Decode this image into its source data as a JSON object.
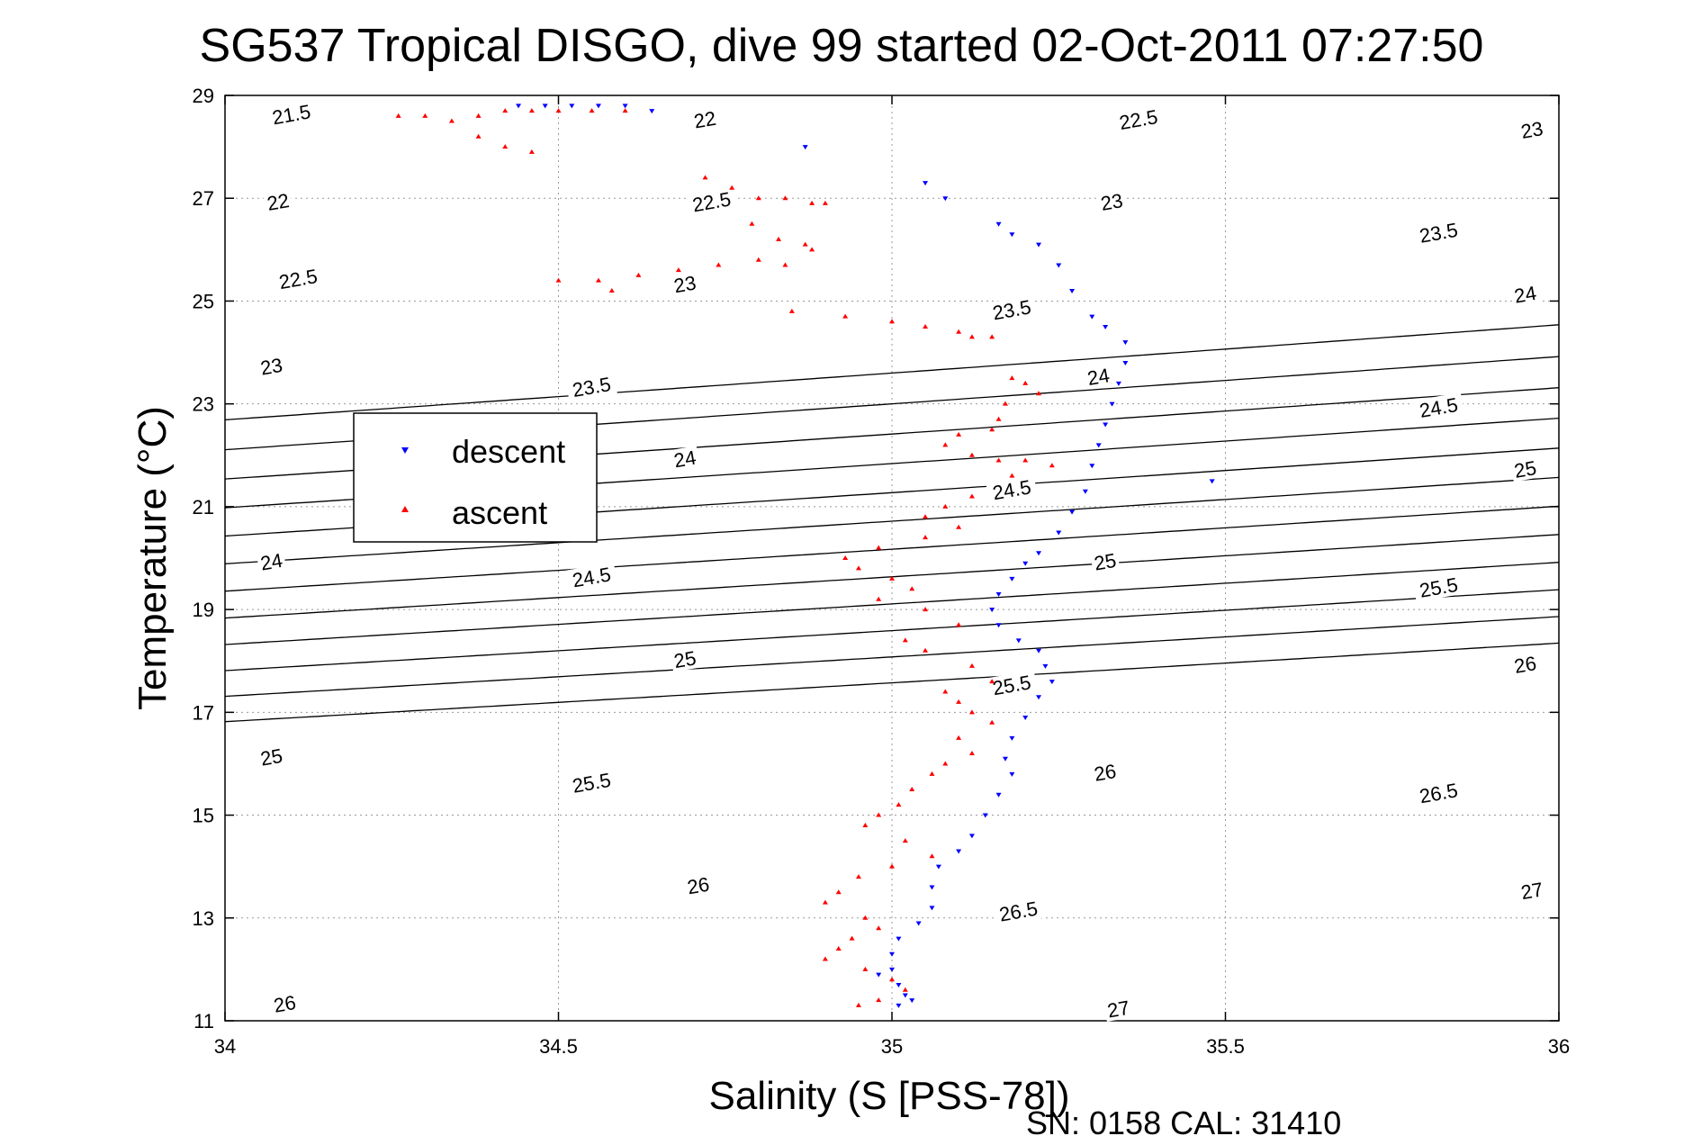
{
  "chart_data": {
    "type": "scatter",
    "title": "SG537 Tropical DISGO, dive 99 started 02-Oct-2011 07:27:50",
    "xlabel": "Salinity (S [PSS-78])",
    "ylabel": "Temperature (°C)",
    "xlim": [
      34,
      36
    ],
    "ylim": [
      11,
      29
    ],
    "x_ticks": [
      34,
      34.5,
      35,
      35.5,
      36
    ],
    "x_tick_labels": [
      "34",
      "34.5",
      "35",
      "35.5",
      "36"
    ],
    "y_ticks": [
      11,
      13,
      15,
      17,
      19,
      21,
      23,
      25,
      27,
      29
    ],
    "y_tick_labels": [
      "11",
      "13",
      "15",
      "17",
      "19",
      "21",
      "23",
      "25",
      "27",
      "29"
    ],
    "grid": true,
    "legend_position": "upper-left",
    "footnote": "SN: 0158  CAL: 31410",
    "colors": {
      "descent": "#0000ff",
      "ascent": "#ff0000",
      "contour": "#000000"
    },
    "density_contours": [
      {
        "level": 21.5,
        "label": "21.5",
        "labels_at": [
          {
            "s": 34.1,
            "t": 28.6
          }
        ]
      },
      {
        "level": 22,
        "label": "22",
        "labels_at": [
          {
            "s": 34.08,
            "t": 26.9
          },
          {
            "s": 34.72,
            "t": 28.5
          }
        ]
      },
      {
        "level": 22.5,
        "label": "22.5",
        "labels_at": [
          {
            "s": 34.11,
            "t": 25.4
          },
          {
            "s": 34.73,
            "t": 26.9
          },
          {
            "s": 35.37,
            "t": 28.5
          }
        ]
      },
      {
        "level": 23,
        "label": "23",
        "labels_at": [
          {
            "s": 34.07,
            "t": 23.7
          },
          {
            "s": 34.69,
            "t": 25.3
          },
          {
            "s": 35.33,
            "t": 26.9
          },
          {
            "s": 35.96,
            "t": 28.3
          }
        ]
      },
      {
        "level": 23.5,
        "label": "23.5",
        "labels_at": [
          {
            "s": 34.55,
            "t": 23.3
          },
          {
            "s": 35.18,
            "t": 24.8
          },
          {
            "s": 35.82,
            "t": 26.3
          }
        ]
      },
      {
        "level": 24,
        "label": "24",
        "labels_at": [
          {
            "s": 34.07,
            "t": 19.9
          },
          {
            "s": 34.69,
            "t": 21.9
          },
          {
            "s": 35.31,
            "t": 23.5
          },
          {
            "s": 35.95,
            "t": 25.1
          }
        ]
      },
      {
        "level": 24.5,
        "label": "24.5",
        "labels_at": [
          {
            "s": 34.55,
            "t": 19.6
          },
          {
            "s": 35.18,
            "t": 21.3
          },
          {
            "s": 35.82,
            "t": 22.9
          }
        ]
      },
      {
        "level": 25,
        "label": "25",
        "labels_at": [
          {
            "s": 34.07,
            "t": 16.1
          },
          {
            "s": 34.69,
            "t": 18.0
          },
          {
            "s": 35.32,
            "t": 19.9
          },
          {
            "s": 35.95,
            "t": 21.7
          }
        ]
      },
      {
        "level": 25.5,
        "label": "25.5",
        "labels_at": [
          {
            "s": 34.55,
            "t": 15.6
          },
          {
            "s": 35.18,
            "t": 17.5
          },
          {
            "s": 35.82,
            "t": 19.4
          }
        ]
      },
      {
        "level": 26,
        "label": "26",
        "labels_at": [
          {
            "s": 34.09,
            "t": 11.3
          },
          {
            "s": 34.71,
            "t": 13.6
          },
          {
            "s": 35.32,
            "t": 15.8
          },
          {
            "s": 35.95,
            "t": 17.9
          }
        ]
      },
      {
        "level": 26.5,
        "label": "26.5",
        "labels_at": [
          {
            "s": 35.19,
            "t": 13.1
          },
          {
            "s": 35.82,
            "t": 15.4
          }
        ]
      },
      {
        "level": 27,
        "label": "27",
        "labels_at": [
          {
            "s": 35.34,
            "t": 11.2
          },
          {
            "s": 35.96,
            "t": 13.5
          }
        ]
      }
    ],
    "series": [
      {
        "name": "descent",
        "marker": "triangle-down",
        "x": [
          34.44,
          34.48,
          34.52,
          34.56,
          34.6,
          34.64,
          34.87,
          35.05,
          35.08,
          35.16,
          35.18,
          35.22,
          35.25,
          35.27,
          35.3,
          35.32,
          35.35,
          35.35,
          35.34,
          35.33,
          35.32,
          35.31,
          35.3,
          35.29,
          35.27,
          35.25,
          35.22,
          35.2,
          35.18,
          35.16,
          35.15,
          35.16,
          35.19,
          35.22,
          35.23,
          35.24,
          35.22,
          35.2,
          35.18,
          35.17,
          35.18,
          35.16,
          35.14,
          35.12,
          35.1,
          35.07,
          35.06,
          35.06,
          35.04,
          35.01,
          35.0,
          35.0,
          34.98,
          35.01,
          35.02,
          35.03,
          35.01,
          35.48
        ],
        "y": [
          28.8,
          28.8,
          28.8,
          28.8,
          28.8,
          28.7,
          28.0,
          27.3,
          27.0,
          26.5,
          26.3,
          26.1,
          25.7,
          25.2,
          24.7,
          24.5,
          24.2,
          23.8,
          23.4,
          23.0,
          22.6,
          22.2,
          21.8,
          21.3,
          20.9,
          20.5,
          20.1,
          19.9,
          19.6,
          19.3,
          19.0,
          18.7,
          18.4,
          18.2,
          17.9,
          17.6,
          17.3,
          16.9,
          16.5,
          16.1,
          15.8,
          15.4,
          15.0,
          14.6,
          14.3,
          14.0,
          13.6,
          13.2,
          12.9,
          12.6,
          12.3,
          12.0,
          11.9,
          11.7,
          11.5,
          11.4,
          11.3,
          21.5
        ]
      },
      {
        "name": "ascent",
        "marker": "triangle-up",
        "x": [
          34.26,
          34.3,
          34.34,
          34.38,
          34.42,
          34.46,
          34.5,
          34.55,
          34.6,
          34.38,
          34.42,
          34.46,
          34.72,
          34.76,
          34.8,
          34.84,
          34.88,
          34.9,
          34.79,
          34.83,
          34.87,
          34.8,
          34.84,
          34.88,
          34.5,
          34.56,
          34.62,
          34.68,
          34.74,
          34.58,
          34.85,
          34.93,
          35.0,
          35.05,
          35.1,
          35.12,
          35.15,
          35.18,
          35.2,
          35.22,
          35.17,
          35.16,
          35.15,
          35.1,
          35.08,
          35.12,
          35.16,
          35.2,
          35.24,
          35.18,
          35.12,
          35.08,
          35.05,
          35.1,
          35.05,
          34.98,
          34.93,
          34.95,
          35.0,
          35.03,
          34.98,
          35.05,
          35.1,
          35.02,
          35.05,
          35.12,
          35.15,
          35.08,
          35.1,
          35.12,
          35.15,
          35.1,
          35.12,
          35.08,
          35.06,
          35.03,
          35.01,
          34.98,
          34.96,
          35.02,
          35.06,
          35.0,
          34.95,
          34.92,
          34.9,
          34.96,
          34.98,
          34.94,
          34.92,
          34.9,
          34.96,
          35.0,
          35.02,
          34.98,
          34.95
        ],
        "y": [
          28.6,
          28.6,
          28.5,
          28.6,
          28.7,
          28.7,
          28.7,
          28.7,
          28.7,
          28.2,
          28.0,
          27.9,
          27.4,
          27.2,
          27.0,
          27.0,
          26.9,
          26.9,
          26.5,
          26.2,
          26.1,
          25.8,
          25.7,
          26.0,
          25.4,
          25.4,
          25.5,
          25.6,
          25.7,
          25.2,
          24.8,
          24.7,
          24.6,
          24.5,
          24.4,
          24.3,
          24.3,
          23.5,
          23.4,
          23.2,
          23.0,
          22.7,
          22.5,
          22.4,
          22.2,
          22.0,
          21.9,
          21.9,
          21.8,
          21.6,
          21.2,
          21.0,
          20.8,
          20.6,
          20.4,
          20.2,
          20.0,
          19.8,
          19.6,
          19.4,
          19.2,
          19.0,
          18.7,
          18.4,
          18.2,
          17.9,
          17.6,
          17.4,
          17.2,
          17.0,
          16.8,
          16.5,
          16.2,
          16.0,
          15.8,
          15.5,
          15.2,
          15.0,
          14.8,
          14.5,
          14.2,
          14.0,
          13.8,
          13.5,
          13.3,
          13.0,
          12.8,
          12.6,
          12.4,
          12.2,
          12.0,
          11.8,
          11.6,
          11.4,
          11.3
        ]
      }
    ]
  },
  "legend": {
    "items": [
      {
        "label": "descent",
        "color": "#0000ff",
        "marker": "triangle-down"
      },
      {
        "label": "ascent",
        "color": "#ff0000",
        "marker": "triangle-up"
      }
    ]
  }
}
